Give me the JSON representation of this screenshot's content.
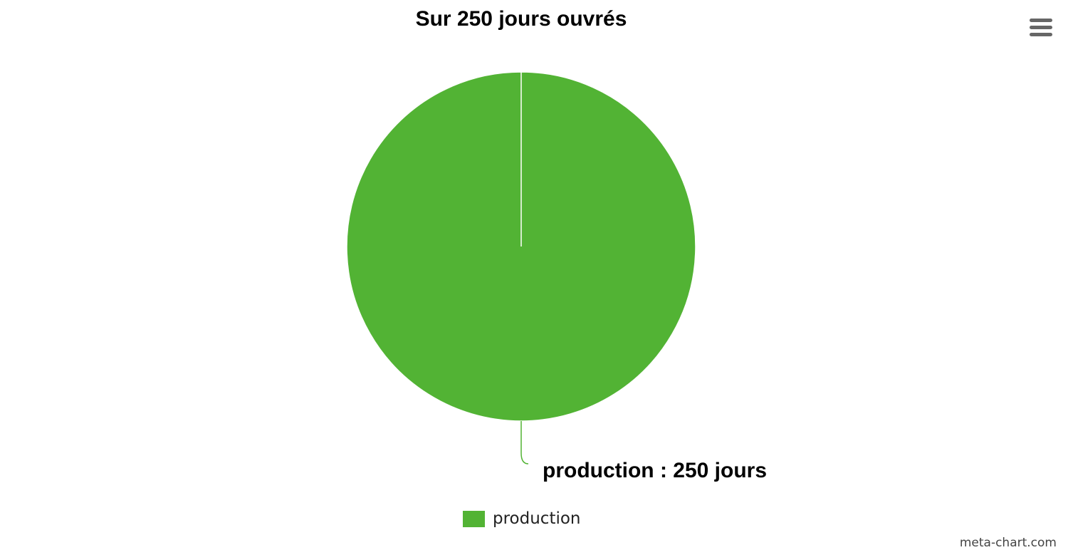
{
  "chart_data": {
    "type": "pie",
    "title": "Sur 250 jours ouvrés",
    "slices": [
      {
        "name": "production",
        "value": 250,
        "unit": "jours",
        "color": "#52b334"
      }
    ],
    "data_labels": [
      "production : 250 jours"
    ],
    "legend": {
      "position": "bottom-center",
      "items": [
        "production"
      ]
    }
  },
  "menu": {
    "icon": "hamburger-menu-icon"
  },
  "credits": "meta-chart.com"
}
